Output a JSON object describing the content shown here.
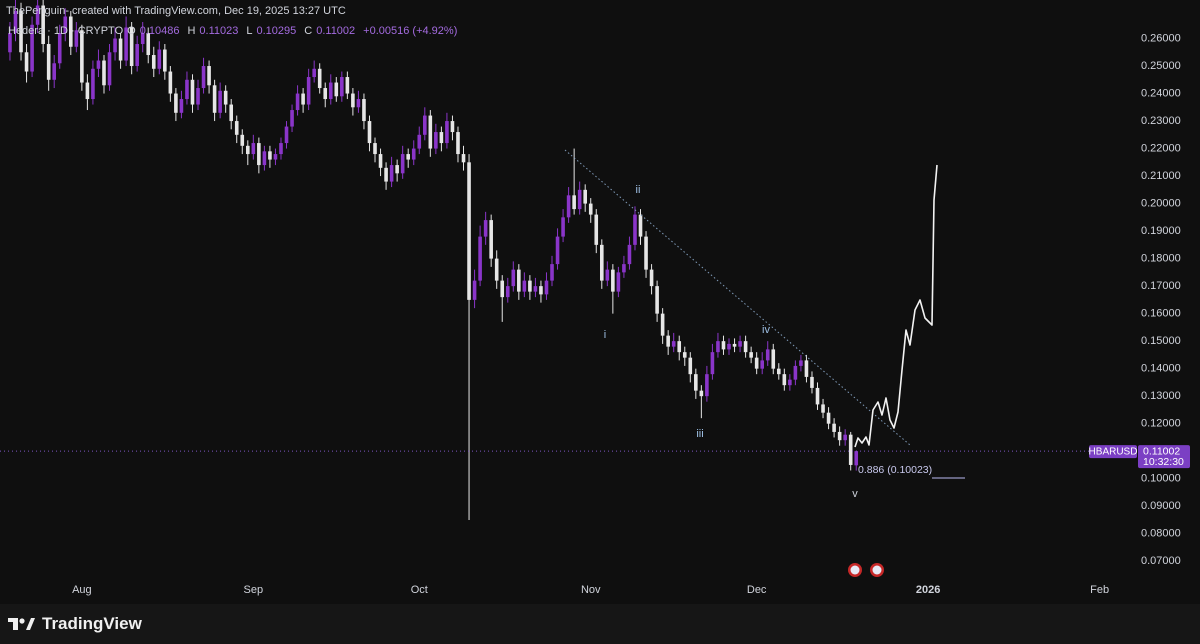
{
  "chart_data": {
    "type": "candlestick",
    "header": "ThePenguin- created with TradingView.com, Dec 19, 2025 13:27 UTC",
    "symbol": "Hedera · 1D · CRYPTO",
    "legend": [
      {
        "label": "O",
        "value": "0.10486"
      },
      {
        "label": "H",
        "value": "0.11023"
      },
      {
        "label": "L",
        "value": "0.10295"
      },
      {
        "label": "C",
        "value": "0.11002"
      }
    ],
    "change": "+0.00516 (+4.92%)",
    "colors": {
      "up": "#8a35c9",
      "down": "#e6e6e6"
    },
    "grid": false,
    "ohlc": [
      [
        0.255,
        0.266,
        0.252,
        0.262
      ],
      [
        0.262,
        0.274,
        0.259,
        0.27
      ],
      [
        0.27,
        0.273,
        0.252,
        0.255
      ],
      [
        0.255,
        0.258,
        0.244,
        0.248
      ],
      [
        0.248,
        0.268,
        0.246,
        0.265
      ],
      [
        0.265,
        0.276,
        0.262,
        0.272
      ],
      [
        0.272,
        0.275,
        0.255,
        0.258
      ],
      [
        0.258,
        0.261,
        0.241,
        0.245
      ],
      [
        0.245,
        0.254,
        0.242,
        0.251
      ],
      [
        0.251,
        0.265,
        0.249,
        0.262
      ],
      [
        0.262,
        0.271,
        0.259,
        0.268
      ],
      [
        0.268,
        0.27,
        0.254,
        0.257
      ],
      [
        0.257,
        0.266,
        0.255,
        0.263
      ],
      [
        0.263,
        0.265,
        0.241,
        0.244
      ],
      [
        0.244,
        0.247,
        0.234,
        0.238
      ],
      [
        0.238,
        0.252,
        0.236,
        0.249
      ],
      [
        0.249,
        0.256,
        0.246,
        0.252
      ],
      [
        0.252,
        0.254,
        0.24,
        0.243
      ],
      [
        0.243,
        0.258,
        0.241,
        0.255
      ],
      [
        0.255,
        0.264,
        0.252,
        0.26
      ],
      [
        0.26,
        0.262,
        0.249,
        0.252
      ],
      [
        0.252,
        0.268,
        0.25,
        0.264
      ],
      [
        0.264,
        0.266,
        0.247,
        0.25
      ],
      [
        0.25,
        0.261,
        0.248,
        0.258
      ],
      [
        0.258,
        0.266,
        0.255,
        0.262
      ],
      [
        0.262,
        0.264,
        0.251,
        0.254
      ],
      [
        0.254,
        0.257,
        0.246,
        0.249
      ],
      [
        0.249,
        0.259,
        0.247,
        0.256
      ],
      [
        0.256,
        0.258,
        0.245,
        0.248
      ],
      [
        0.248,
        0.25,
        0.237,
        0.24
      ],
      [
        0.24,
        0.242,
        0.23,
        0.233
      ],
      [
        0.233,
        0.241,
        0.231,
        0.238
      ],
      [
        0.238,
        0.248,
        0.236,
        0.245
      ],
      [
        0.245,
        0.247,
        0.233,
        0.236
      ],
      [
        0.236,
        0.245,
        0.234,
        0.242
      ],
      [
        0.242,
        0.253,
        0.24,
        0.25
      ],
      [
        0.25,
        0.252,
        0.24,
        0.243
      ],
      [
        0.243,
        0.245,
        0.23,
        0.233
      ],
      [
        0.233,
        0.244,
        0.231,
        0.241
      ],
      [
        0.241,
        0.243,
        0.233,
        0.236
      ],
      [
        0.236,
        0.238,
        0.227,
        0.23
      ],
      [
        0.23,
        0.232,
        0.222,
        0.225
      ],
      [
        0.225,
        0.227,
        0.218,
        0.221
      ],
      [
        0.221,
        0.223,
        0.214,
        0.218
      ],
      [
        0.218,
        0.225,
        0.216,
        0.222
      ],
      [
        0.222,
        0.224,
        0.211,
        0.214
      ],
      [
        0.214,
        0.221,
        0.212,
        0.219
      ],
      [
        0.219,
        0.221,
        0.213,
        0.216
      ],
      [
        0.216,
        0.22,
        0.214,
        0.218
      ],
      [
        0.218,
        0.224,
        0.216,
        0.222
      ],
      [
        0.222,
        0.23,
        0.22,
        0.228
      ],
      [
        0.228,
        0.236,
        0.226,
        0.234
      ],
      [
        0.234,
        0.243,
        0.232,
        0.24
      ],
      [
        0.24,
        0.242,
        0.233,
        0.236
      ],
      [
        0.236,
        0.249,
        0.234,
        0.246
      ],
      [
        0.246,
        0.252,
        0.244,
        0.249
      ],
      [
        0.249,
        0.251,
        0.24,
        0.242
      ],
      [
        0.242,
        0.244,
        0.235,
        0.238
      ],
      [
        0.238,
        0.247,
        0.236,
        0.244
      ],
      [
        0.244,
        0.246,
        0.237,
        0.239
      ],
      [
        0.239,
        0.248,
        0.237,
        0.246
      ],
      [
        0.246,
        0.248,
        0.238,
        0.24
      ],
      [
        0.24,
        0.242,
        0.232,
        0.235
      ],
      [
        0.235,
        0.241,
        0.233,
        0.238
      ],
      [
        0.238,
        0.24,
        0.227,
        0.23
      ],
      [
        0.23,
        0.232,
        0.219,
        0.222
      ],
      [
        0.222,
        0.224,
        0.215,
        0.218
      ],
      [
        0.218,
        0.22,
        0.21,
        0.213
      ],
      [
        0.213,
        0.215,
        0.205,
        0.208
      ],
      [
        0.208,
        0.217,
        0.206,
        0.214
      ],
      [
        0.214,
        0.216,
        0.208,
        0.211
      ],
      [
        0.211,
        0.221,
        0.209,
        0.218
      ],
      [
        0.218,
        0.22,
        0.213,
        0.216
      ],
      [
        0.216,
        0.223,
        0.214,
        0.22
      ],
      [
        0.22,
        0.228,
        0.218,
        0.225
      ],
      [
        0.225,
        0.235,
        0.223,
        0.232
      ],
      [
        0.232,
        0.234,
        0.217,
        0.22
      ],
      [
        0.22,
        0.229,
        0.218,
        0.226
      ],
      [
        0.226,
        0.228,
        0.219,
        0.222
      ],
      [
        0.222,
        0.233,
        0.22,
        0.23
      ],
      [
        0.23,
        0.232,
        0.223,
        0.226
      ],
      [
        0.226,
        0.228,
        0.215,
        0.218
      ],
      [
        0.218,
        0.221,
        0.212,
        0.215
      ],
      [
        0.215,
        0.218,
        0.085,
        0.165
      ],
      [
        0.165,
        0.176,
        0.162,
        0.172
      ],
      [
        0.172,
        0.192,
        0.17,
        0.188
      ],
      [
        0.188,
        0.197,
        0.185,
        0.194
      ],
      [
        0.194,
        0.196,
        0.177,
        0.18
      ],
      [
        0.18,
        0.183,
        0.169,
        0.172
      ],
      [
        0.172,
        0.174,
        0.157,
        0.166
      ],
      [
        0.166,
        0.173,
        0.164,
        0.17
      ],
      [
        0.17,
        0.179,
        0.168,
        0.176
      ],
      [
        0.176,
        0.178,
        0.165,
        0.168
      ],
      [
        0.168,
        0.175,
        0.166,
        0.172
      ],
      [
        0.172,
        0.174,
        0.165,
        0.168
      ],
      [
        0.168,
        0.173,
        0.166,
        0.17
      ],
      [
        0.17,
        0.172,
        0.164,
        0.167
      ],
      [
        0.167,
        0.175,
        0.165,
        0.172
      ],
      [
        0.172,
        0.181,
        0.17,
        0.178
      ],
      [
        0.178,
        0.191,
        0.176,
        0.188
      ],
      [
        0.188,
        0.198,
        0.186,
        0.195
      ],
      [
        0.195,
        0.206,
        0.193,
        0.203
      ],
      [
        0.203,
        0.22,
        0.196,
        0.198
      ],
      [
        0.198,
        0.208,
        0.196,
        0.205
      ],
      [
        0.205,
        0.207,
        0.197,
        0.2
      ],
      [
        0.2,
        0.202,
        0.193,
        0.196
      ],
      [
        0.196,
        0.198,
        0.182,
        0.185
      ],
      [
        0.185,
        0.187,
        0.169,
        0.172
      ],
      [
        0.172,
        0.179,
        0.17,
        0.176
      ],
      [
        0.176,
        0.178,
        0.16,
        0.168
      ],
      [
        0.168,
        0.177,
        0.166,
        0.175
      ],
      [
        0.175,
        0.181,
        0.173,
        0.178
      ],
      [
        0.178,
        0.188,
        0.176,
        0.185
      ],
      [
        0.185,
        0.199,
        0.183,
        0.196
      ],
      [
        0.196,
        0.198,
        0.185,
        0.188
      ],
      [
        0.188,
        0.19,
        0.173,
        0.176
      ],
      [
        0.176,
        0.178,
        0.167,
        0.17
      ],
      [
        0.17,
        0.172,
        0.157,
        0.16
      ],
      [
        0.16,
        0.162,
        0.149,
        0.152
      ],
      [
        0.152,
        0.154,
        0.145,
        0.148
      ],
      [
        0.148,
        0.153,
        0.146,
        0.15
      ],
      [
        0.15,
        0.152,
        0.143,
        0.146
      ],
      [
        0.146,
        0.148,
        0.141,
        0.144
      ],
      [
        0.144,
        0.146,
        0.135,
        0.138
      ],
      [
        0.138,
        0.14,
        0.129,
        0.132
      ],
      [
        0.132,
        0.134,
        0.122,
        0.13
      ],
      [
        0.13,
        0.141,
        0.128,
        0.138
      ],
      [
        0.138,
        0.149,
        0.136,
        0.146
      ],
      [
        0.146,
        0.153,
        0.144,
        0.15
      ],
      [
        0.15,
        0.152,
        0.145,
        0.147
      ],
      [
        0.147,
        0.151,
        0.145,
        0.149
      ],
      [
        0.149,
        0.151,
        0.146,
        0.148
      ],
      [
        0.148,
        0.152,
        0.146,
        0.15
      ],
      [
        0.15,
        0.152,
        0.144,
        0.146
      ],
      [
        0.146,
        0.148,
        0.142,
        0.144
      ],
      [
        0.144,
        0.146,
        0.138,
        0.14
      ],
      [
        0.14,
        0.146,
        0.138,
        0.143
      ],
      [
        0.143,
        0.15,
        0.141,
        0.147
      ],
      [
        0.147,
        0.149,
        0.138,
        0.14
      ],
      [
        0.14,
        0.142,
        0.136,
        0.138
      ],
      [
        0.138,
        0.14,
        0.132,
        0.134
      ],
      [
        0.134,
        0.138,
        0.132,
        0.136
      ],
      [
        0.136,
        0.143,
        0.134,
        0.141
      ],
      [
        0.141,
        0.145,
        0.139,
        0.143
      ],
      [
        0.143,
        0.145,
        0.135,
        0.137
      ],
      [
        0.137,
        0.139,
        0.131,
        0.133
      ],
      [
        0.133,
        0.135,
        0.125,
        0.127
      ],
      [
        0.127,
        0.129,
        0.122,
        0.124
      ],
      [
        0.124,
        0.126,
        0.118,
        0.12
      ],
      [
        0.12,
        0.122,
        0.115,
        0.117
      ],
      [
        0.117,
        0.119,
        0.112,
        0.114
      ],
      [
        0.114,
        0.118,
        0.112,
        0.116
      ],
      [
        0.116,
        0.117,
        0.103,
        0.105
      ],
      [
        0.10486,
        0.11023,
        0.10295,
        0.11002
      ]
    ],
    "xlim": [
      -1.8,
      203.4
    ],
    "xticks": [
      {
        "value": 13,
        "label": "Aug"
      },
      {
        "value": 44,
        "label": "Sep"
      },
      {
        "value": 74,
        "label": "Oct"
      },
      {
        "value": 105,
        "label": "Nov"
      },
      {
        "value": 135,
        "label": "Dec"
      },
      {
        "value": 166,
        "label": "2026"
      },
      {
        "value": 197,
        "label": "Feb"
      }
    ],
    "ylim": [
      0.065,
      0.274
    ],
    "yticks": [
      {
        "value": 0.07,
        "label": "0.07000"
      },
      {
        "value": 0.08,
        "label": "0.08000"
      },
      {
        "value": 0.09,
        "label": "0.09000"
      },
      {
        "value": 0.1,
        "label": "0.10000"
      },
      {
        "value": 0.11,
        "label": "0.11000"
      },
      {
        "value": 0.12,
        "label": "0.12000"
      },
      {
        "value": 0.13,
        "label": "0.13000"
      },
      {
        "value": 0.14,
        "label": "0.14000"
      },
      {
        "value": 0.15,
        "label": "0.15000"
      },
      {
        "value": 0.16,
        "label": "0.16000"
      },
      {
        "value": 0.17,
        "label": "0.17000"
      },
      {
        "value": 0.18,
        "label": "0.18000"
      },
      {
        "value": 0.19,
        "label": "0.19000"
      },
      {
        "value": 0.2,
        "label": "0.20000"
      },
      {
        "value": 0.21,
        "label": "0.21000"
      },
      {
        "value": 0.22,
        "label": "0.22000"
      },
      {
        "value": 0.23,
        "label": "0.23000"
      },
      {
        "value": 0.24,
        "label": "0.24000"
      },
      {
        "value": 0.25,
        "label": "0.25000"
      },
      {
        "value": 0.26,
        "label": "0.26000"
      }
    ],
    "annotations": [
      "i",
      "ii",
      "iii",
      "iv",
      "v"
    ],
    "fib_label": "0.886 (0.10023)",
    "price_tag": {
      "symbol": "HBARUSD",
      "price": "0.11002",
      "countdown": "10:32:30"
    },
    "brand": "TradingView"
  }
}
